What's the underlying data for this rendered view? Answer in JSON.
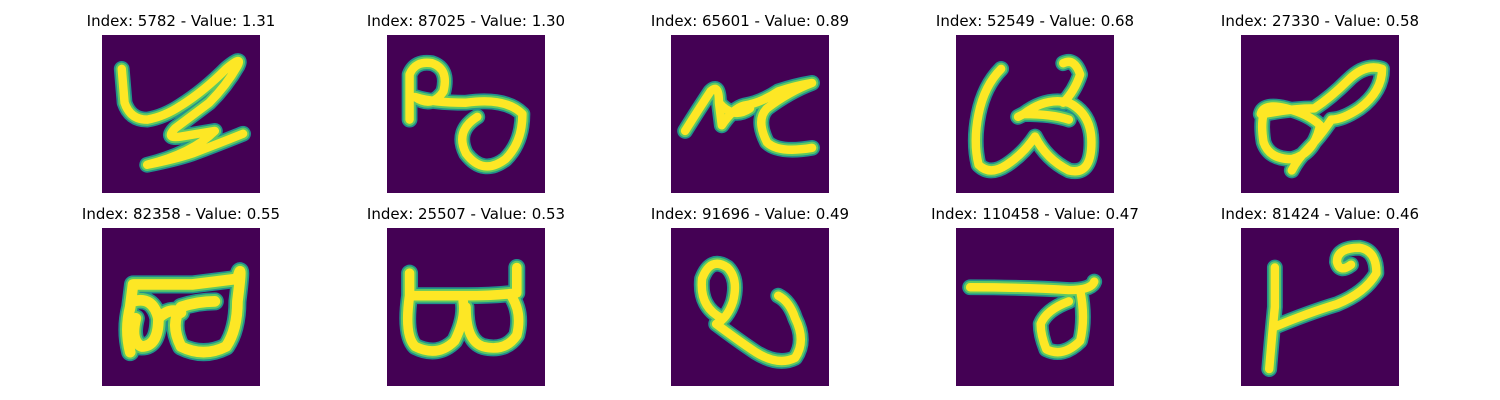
{
  "image_colors": {
    "background": "#440154",
    "stroke_core": "#fde725",
    "stroke_mid": "#5ec962",
    "stroke_edge": "#21918c"
  },
  "samples": [
    {
      "index": "5782",
      "value": "1.31",
      "title": "Index: 5782 - Value: 1.31"
    },
    {
      "index": "87025",
      "value": "1.30",
      "title": "Index: 87025 - Value: 1.30"
    },
    {
      "index": "65601",
      "value": "0.89",
      "title": "Index: 65601 - Value: 0.89"
    },
    {
      "index": "52549",
      "value": "0.68",
      "title": "Index: 52549 - Value: 0.68"
    },
    {
      "index": "27330",
      "value": "0.58",
      "title": "Index: 27330 - Value: 0.58"
    },
    {
      "index": "82358",
      "value": "0.55",
      "title": "Index: 82358 - Value: 0.55"
    },
    {
      "index": "25507",
      "value": "0.53",
      "title": "Index: 25507 - Value: 0.53"
    },
    {
      "index": "91696",
      "value": "0.49",
      "title": "Index: 91696 - Value: 0.49"
    },
    {
      "index": "110458",
      "value": "0.47",
      "title": "Index: 110458 - Value: 0.47"
    },
    {
      "index": "81424",
      "value": "0.46",
      "title": "Index: 81424 - Value: 0.46"
    }
  ]
}
